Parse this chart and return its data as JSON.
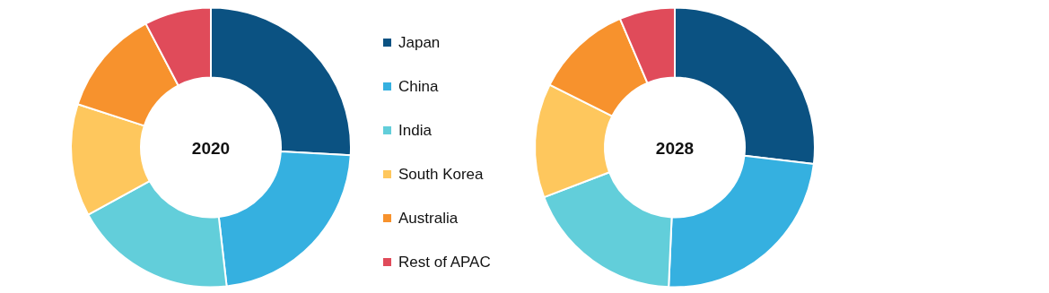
{
  "chart_data": [
    {
      "type": "donut",
      "title": "2020",
      "categories": [
        "Japan",
        "China",
        "India",
        "South Korea",
        "Australia",
        "Rest of APAC"
      ],
      "values": [
        25.9,
        22.3,
        18.8,
        13.0,
        12.3,
        7.7
      ],
      "colors": [
        "#0b5282",
        "#35b0e0",
        "#62ceda",
        "#fec75d",
        "#f7922d",
        "#e04b5a"
      ],
      "legend": "right"
    },
    {
      "type": "donut",
      "title": "2028",
      "categories": [
        null,
        null,
        null,
        null,
        null,
        null
      ],
      "values": [
        26.9,
        23.8,
        18.5,
        13.2,
        11.2,
        6.4
      ],
      "colors": [
        "#0b5282",
        "#35b0e0",
        "#62ceda",
        "#fec75d",
        "#f7922d",
        "#e04b5a"
      ]
    }
  ]
}
